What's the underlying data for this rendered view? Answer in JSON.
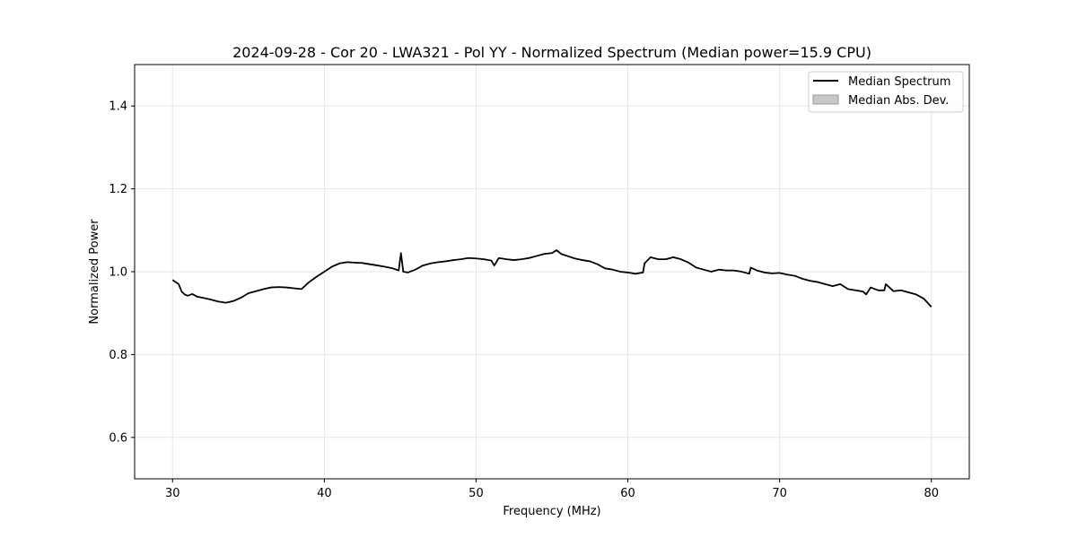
{
  "chart_data": {
    "type": "line",
    "title": "2024-09-28 - Cor 20 - LWA321 - Pol YY - Normalized Spectrum (Median power=15.9 CPU)",
    "xlabel": "Frequency (MHz)",
    "ylabel": "Normalized Power",
    "xlim": [
      27.5,
      82.5
    ],
    "ylim": [
      0.5,
      1.5
    ],
    "xticks": [
      30,
      40,
      50,
      60,
      70,
      80
    ],
    "yticks": [
      0.6,
      0.8,
      1.0,
      1.2,
      1.4
    ],
    "xtick_labels": [
      "30",
      "40",
      "50",
      "60",
      "70",
      "80"
    ],
    "ytick_labels": [
      "0.6",
      "0.8",
      "1.0",
      "1.2",
      "1.4"
    ],
    "grid": true,
    "legend_position": "top-right",
    "legend": [
      {
        "label": "Median Spectrum",
        "kind": "line",
        "color": "#000000"
      },
      {
        "label": "Median Abs. Dev.",
        "kind": "patch",
        "color": "#c8c8c8"
      }
    ],
    "series": [
      {
        "name": "Median Spectrum",
        "color": "#000000",
        "x": [
          30.0,
          30.2,
          30.4,
          30.6,
          30.8,
          31.0,
          31.3,
          31.6,
          32.0,
          32.5,
          33.0,
          33.5,
          34.0,
          34.5,
          35.0,
          35.5,
          36.0,
          36.5,
          37.0,
          37.5,
          38.0,
          38.5,
          39.0,
          39.5,
          40.0,
          40.5,
          41.0,
          41.5,
          42.0,
          42.5,
          43.0,
          43.5,
          44.0,
          44.5,
          44.9,
          45.05,
          45.2,
          45.5,
          46.0,
          46.5,
          47.0,
          47.5,
          48.0,
          48.5,
          49.0,
          49.5,
          50.0,
          50.5,
          51.0,
          51.2,
          51.5,
          52.0,
          52.5,
          53.0,
          53.5,
          54.0,
          54.5,
          55.0,
          55.3,
          55.6,
          56.0,
          56.5,
          57.0,
          57.5,
          58.0,
          58.5,
          59.0,
          59.5,
          60.0,
          60.5,
          61.0,
          61.1,
          61.5,
          62.0,
          62.5,
          63.0,
          63.5,
          64.0,
          64.5,
          65.0,
          65.5,
          66.0,
          66.5,
          67.0,
          67.5,
          68.0,
          68.1,
          68.5,
          69.0,
          69.5,
          70.0,
          70.5,
          71.0,
          71.5,
          72.0,
          72.5,
          73.0,
          73.5,
          74.0,
          74.5,
          75.0,
          75.5,
          75.7,
          76.0,
          76.5,
          76.9,
          77.0,
          77.5,
          78.0,
          78.5,
          79.0,
          79.5,
          80.0
        ],
        "values": [
          0.98,
          0.975,
          0.97,
          0.952,
          0.945,
          0.942,
          0.946,
          0.94,
          0.937,
          0.933,
          0.928,
          0.925,
          0.929,
          0.937,
          0.948,
          0.953,
          0.958,
          0.962,
          0.963,
          0.962,
          0.96,
          0.958,
          0.975,
          0.988,
          1.0,
          1.012,
          1.02,
          1.023,
          1.022,
          1.021,
          1.018,
          1.015,
          1.012,
          1.008,
          1.003,
          1.045,
          1.0,
          0.998,
          1.005,
          1.015,
          1.02,
          1.023,
          1.025,
          1.028,
          1.03,
          1.033,
          1.032,
          1.03,
          1.027,
          1.015,
          1.033,
          1.03,
          1.028,
          1.03,
          1.033,
          1.038,
          1.043,
          1.045,
          1.052,
          1.043,
          1.038,
          1.032,
          1.028,
          1.025,
          1.018,
          1.008,
          1.005,
          1.0,
          0.998,
          0.995,
          0.998,
          1.02,
          1.035,
          1.03,
          1.03,
          1.035,
          1.03,
          1.022,
          1.01,
          1.005,
          1.0,
          1.005,
          1.003,
          1.003,
          1.0,
          0.995,
          1.01,
          1.003,
          0.998,
          0.996,
          0.997,
          0.993,
          0.99,
          0.983,
          0.978,
          0.975,
          0.97,
          0.965,
          0.97,
          0.958,
          0.955,
          0.952,
          0.945,
          0.962,
          0.955,
          0.955,
          0.97,
          0.953,
          0.955,
          0.95,
          0.945,
          0.935,
          0.915
        ]
      }
    ]
  }
}
